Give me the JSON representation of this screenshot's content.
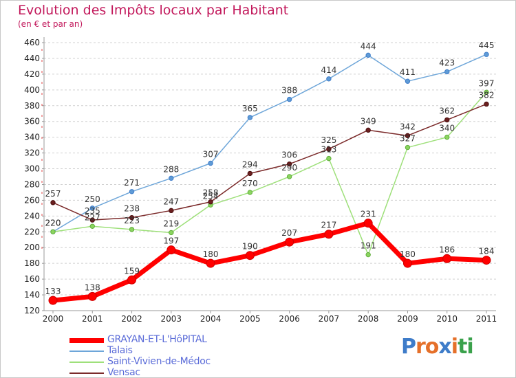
{
  "title": "Evolution des Impôts locaux par Habitant",
  "subtitle": "(en € et par an)",
  "brand": {
    "letters": [
      {
        "ch": "P",
        "color": "#3e7cc9"
      },
      {
        "ch": "r",
        "color": "#e5702a"
      },
      {
        "ch": "o",
        "color": "#e5702a"
      },
      {
        "ch": "x",
        "color": "#3e7cc9"
      },
      {
        "ch": "i",
        "color": "#e5702a"
      },
      {
        "ch": "t",
        "color": "#3aa14b"
      },
      {
        "ch": "i",
        "color": "#3aa14b"
      }
    ]
  },
  "chart_data": {
    "type": "line",
    "title": "Evolution des Impôts locaux par Habitant",
    "subtitle": "(en € et par an)",
    "x": [
      "2000",
      "2001",
      "2002",
      "2003",
      "2004",
      "2005",
      "2006",
      "2007",
      "2008",
      "2009",
      "2010",
      "2011"
    ],
    "ylim": [
      120,
      460
    ],
    "yticks": [
      120,
      140,
      160,
      180,
      200,
      220,
      240,
      260,
      280,
      300,
      320,
      340,
      360,
      380,
      400,
      420,
      440,
      460
    ],
    "grid": "horizontal dashed",
    "legend_position": "bottom-left",
    "series": [
      {
        "name": "GRAYAN-ET-L'HôPITAL",
        "color": "#ff0000",
        "values": [
          133,
          138,
          159,
          197,
          180,
          190,
          207,
          217,
          231,
          180,
          186,
          184
        ]
      },
      {
        "name": "Talais",
        "color": "#6ea6d9",
        "values": [
          220,
          250,
          271,
          288,
          307,
          365,
          388,
          414,
          444,
          411,
          423,
          445
        ]
      },
      {
        "name": "Saint-Vivien-de-Médoc",
        "color": "#9ee07a",
        "values": [
          220,
          227,
          223,
          219,
          254,
          270,
          290,
          313,
          191,
          327,
          340,
          397
        ]
      },
      {
        "name": "Vensac",
        "color": "#7b2a2a",
        "values": [
          257,
          235,
          238,
          247,
          258,
          294,
          306,
          325,
          349,
          342,
          362,
          382
        ]
      }
    ]
  }
}
